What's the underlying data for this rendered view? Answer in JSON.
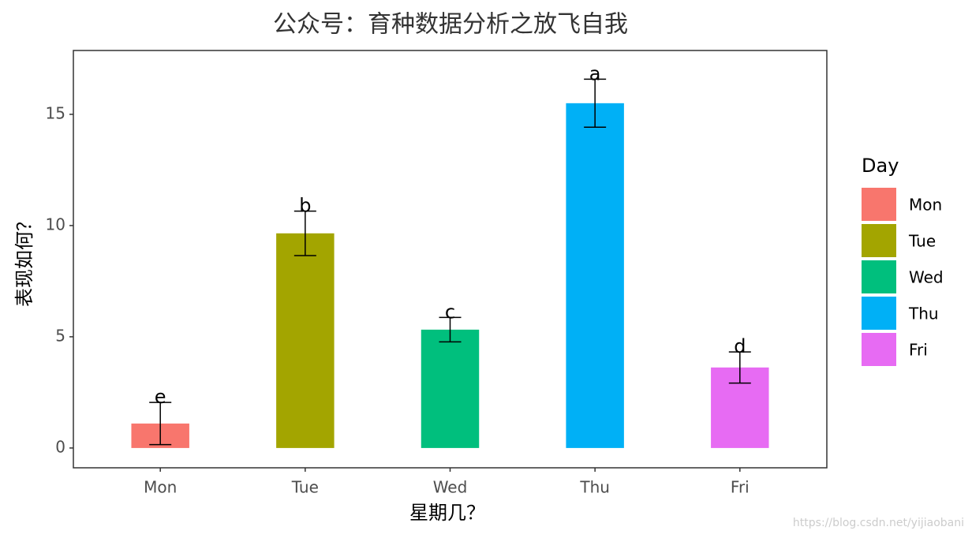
{
  "chart_data": {
    "type": "bar",
    "title": "公众号：育种数据分析之放飞自我",
    "x_label": "星期几？",
    "y_label": "表现如何？",
    "legend_title": "Day",
    "categories": [
      "Mon",
      "Tue",
      "Wed",
      "Thu",
      "Fri"
    ],
    "values": [
      1.1,
      9.65,
      5.32,
      15.5,
      3.62
    ],
    "errors": [
      0.95,
      1.0,
      0.55,
      1.08,
      0.7
    ],
    "labels": [
      "e",
      "b",
      "c",
      "a",
      "d"
    ],
    "colors": [
      "#f8766d",
      "#a3a500",
      "#00bf7d",
      "#00b0f6",
      "#e76bf3"
    ],
    "ylim": [
      -0.89,
      17.87
    ],
    "yticks": [
      0,
      5,
      10,
      15
    ],
    "watermark": "https://blog.csdn.net/yijiaobani"
  }
}
